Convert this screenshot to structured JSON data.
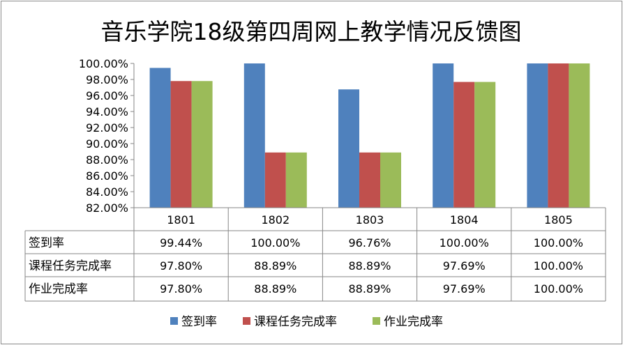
{
  "chart_data": {
    "type": "bar",
    "title": "音乐学院18级第四周网上教学情况反馈图",
    "categories": [
      "1801",
      "1802",
      "1803",
      "1804",
      "1805"
    ],
    "series": [
      {
        "name": "签到率",
        "color": "#4f81bd",
        "values": [
          99.44,
          100.0,
          96.76,
          100.0,
          100.0
        ],
        "labels": [
          "99.44%",
          "100.00%",
          "96.76%",
          "100.00%",
          "100.00%"
        ]
      },
      {
        "name": "课程任务完成率",
        "color": "#c0504d",
        "values": [
          97.8,
          88.89,
          88.89,
          97.69,
          100.0
        ],
        "labels": [
          "97.80%",
          "88.89%",
          "88.89%",
          "97.69%",
          "100.00%"
        ]
      },
      {
        "name": "作业完成率",
        "color": "#9bbb59",
        "values": [
          97.8,
          88.89,
          88.89,
          97.69,
          100.0
        ],
        "labels": [
          "97.80%",
          "88.89%",
          "88.89%",
          "97.69%",
          "100.00%"
        ]
      }
    ],
    "ylim": [
      82,
      100
    ],
    "yticks": [
      "82.00%",
      "84.00%",
      "86.00%",
      "88.00%",
      "90.00%",
      "92.00%",
      "94.00%",
      "96.00%",
      "98.00%",
      "100.00%"
    ],
    "grid": false,
    "legend": "bottom",
    "data_table": true
  }
}
